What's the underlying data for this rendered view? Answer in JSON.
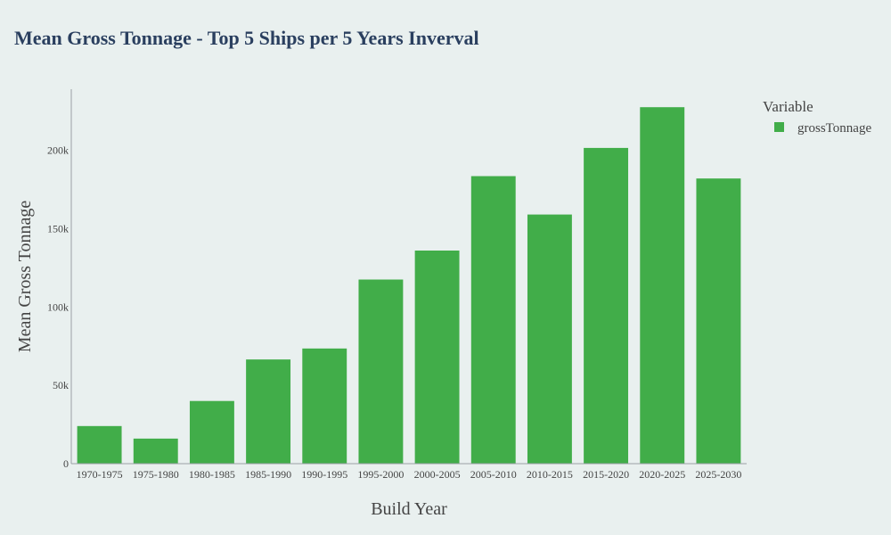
{
  "colors": {
    "background": "#e9f0ef",
    "bar": "#41ad49",
    "axis": "#9aa0a6",
    "title": "#2a3f5f"
  },
  "chart_data": {
    "type": "bar",
    "title": "Mean Gross Tonnage - Top 5 Ships per 5 Years Inverval",
    "xlabel": "Build Year",
    "ylabel": "Mean Gross Tonnage",
    "categories": [
      "1970-1975",
      "1975-1980",
      "1980-1985",
      "1985-1990",
      "1990-1995",
      "1995-2000",
      "2000-2005",
      "2005-2010",
      "2010-2015",
      "2015-2020",
      "2020-2025",
      "2025-2030"
    ],
    "series": [
      {
        "name": "grossTonnage",
        "values": [
          24000,
          16000,
          40000,
          66500,
          73500,
          117500,
          136000,
          183500,
          159000,
          201500,
          227500,
          182000
        ]
      }
    ],
    "ylim": [
      0,
      239000
    ],
    "yticks": [
      0,
      50000,
      100000,
      150000,
      200000
    ],
    "ytick_labels": [
      "0",
      "50k",
      "100k",
      "150k",
      "200k"
    ],
    "grid": false,
    "legend": {
      "title": "Variable",
      "position": "top-right"
    }
  }
}
